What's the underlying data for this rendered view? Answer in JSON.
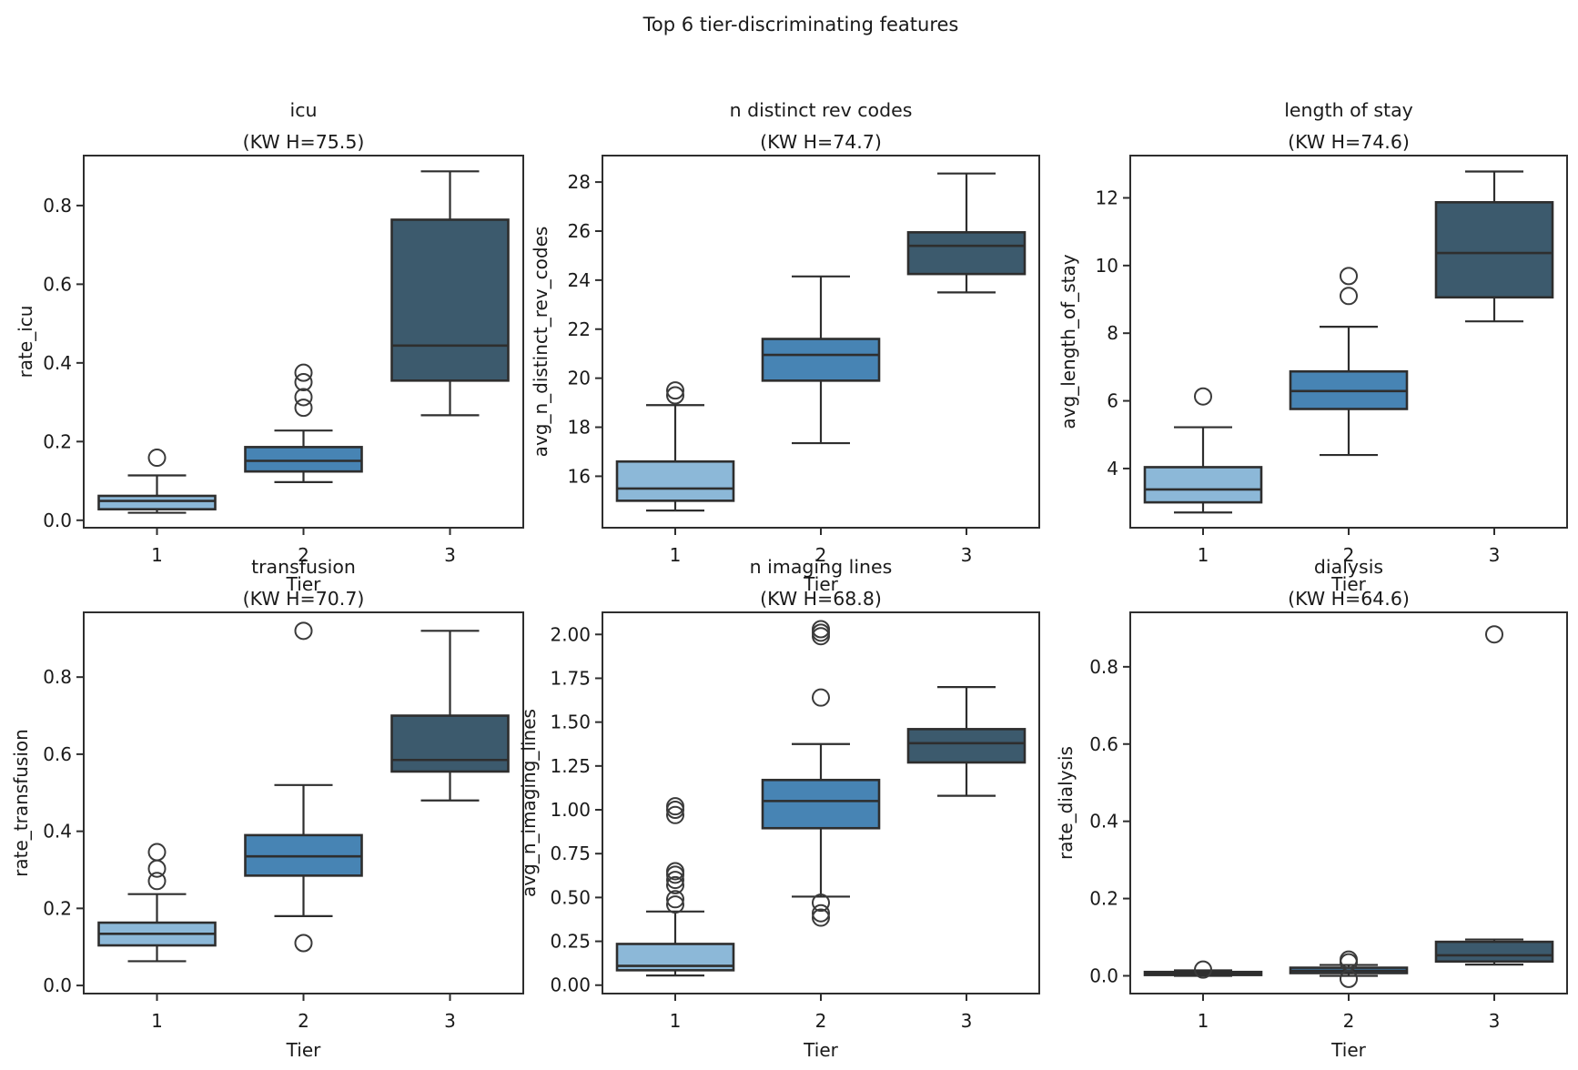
{
  "figure": {
    "suptitle": "Top 6 tier-discriminating features",
    "background": "#ffffff",
    "text_color": "#1a1a1a",
    "edge_color": "#2e2e2e",
    "tier_colors": [
      "#8CB8D8",
      "#4784B4",
      "#3C5A6D"
    ]
  },
  "chart_data": [
    {
      "type": "box",
      "title": "icu",
      "subtitle": "(KW H=75.5)",
      "xlabel": "Tier",
      "ylabel": "rate_icu",
      "categories": [
        "1",
        "2",
        "3"
      ],
      "ylim": [
        -0.019,
        0.927
      ],
      "yticks": {
        "values": [
          0.0,
          0.2,
          0.4,
          0.6,
          0.8
        ],
        "labels": [
          "0.0",
          "0.2",
          "0.4",
          "0.6",
          "0.8"
        ]
      },
      "boxes": [
        {
          "whislo": 0.019,
          "q1": 0.028,
          "med": 0.049,
          "q3": 0.062,
          "whishi": 0.114,
          "outliers": [
            0.159
          ]
        },
        {
          "whislo": 0.097,
          "q1": 0.124,
          "med": 0.151,
          "q3": 0.186,
          "whishi": 0.228,
          "outliers": [
            0.286,
            0.313,
            0.351,
            0.375
          ]
        },
        {
          "whislo": 0.267,
          "q1": 0.355,
          "med": 0.444,
          "q3": 0.764,
          "whishi": 0.887,
          "outliers": []
        }
      ]
    },
    {
      "type": "box",
      "title": "n distinct rev codes",
      "subtitle": "(KW H=74.7)",
      "xlabel": "Tier",
      "ylabel": "avg_n_distinct_rev_codes",
      "categories": [
        "1",
        "2",
        "3"
      ],
      "ylim": [
        13.9,
        29.08
      ],
      "yticks": {
        "values": [
          16,
          18,
          20,
          22,
          24,
          26,
          28
        ],
        "labels": [
          "16",
          "18",
          "20",
          "22",
          "24",
          "26",
          "28"
        ]
      },
      "boxes": [
        {
          "whislo": 14.6,
          "q1": 15.0,
          "med": 15.5,
          "q3": 16.6,
          "whishi": 18.9,
          "outliers": [
            19.3,
            19.5
          ]
        },
        {
          "whislo": 17.35,
          "q1": 19.9,
          "med": 20.95,
          "q3": 21.6,
          "whishi": 24.15,
          "outliers": []
        },
        {
          "whislo": 23.5,
          "q1": 24.25,
          "med": 25.4,
          "q3": 25.95,
          "whishi": 28.35,
          "outliers": []
        }
      ]
    },
    {
      "type": "box",
      "title": "length of stay",
      "subtitle": "(KW H=74.6)",
      "xlabel": "Tier",
      "ylabel": "avg_length_of_stay",
      "categories": [
        "1",
        "2",
        "3"
      ],
      "ylim": [
        2.25,
        13.25
      ],
      "yticks": {
        "values": [
          4,
          6,
          8,
          10,
          12
        ],
        "labels": [
          "4",
          "6",
          "8",
          "10",
          "12"
        ]
      },
      "boxes": [
        {
          "whislo": 2.7,
          "q1": 3.0,
          "med": 3.38,
          "q3": 4.04,
          "whishi": 5.22,
          "outliers": [
            6.13
          ]
        },
        {
          "whislo": 4.4,
          "q1": 5.76,
          "med": 6.29,
          "q3": 6.87,
          "whishi": 8.19,
          "outliers": [
            9.1,
            9.69
          ]
        },
        {
          "whislo": 8.35,
          "q1": 9.06,
          "med": 10.37,
          "q3": 11.87,
          "whishi": 12.78,
          "outliers": []
        }
      ]
    },
    {
      "type": "box",
      "title": "transfusion",
      "subtitle": "(KW H=70.7)",
      "xlabel": "Tier",
      "ylabel": "rate_transfusion",
      "categories": [
        "1",
        "2",
        "3"
      ],
      "ylim": [
        -0.021,
        0.968
      ],
      "yticks": {
        "values": [
          0.0,
          0.2,
          0.4,
          0.6,
          0.8
        ],
        "labels": [
          "0.0",
          "0.2",
          "0.4",
          "0.6",
          "0.8"
        ]
      },
      "boxes": [
        {
          "whislo": 0.063,
          "q1": 0.104,
          "med": 0.134,
          "q3": 0.163,
          "whishi": 0.237,
          "outliers": [
            0.271,
            0.303,
            0.346
          ]
        },
        {
          "whislo": 0.18,
          "q1": 0.285,
          "med": 0.335,
          "q3": 0.39,
          "whishi": 0.52,
          "outliers": [
            0.11,
            0.92
          ]
        },
        {
          "whislo": 0.48,
          "q1": 0.555,
          "med": 0.585,
          "q3": 0.7,
          "whishi": 0.92,
          "outliers": []
        }
      ]
    },
    {
      "type": "box",
      "title": "n imaging lines",
      "subtitle": "(KW H=68.8)",
      "xlabel": "Tier",
      "ylabel": "avg_n_imaging_lines",
      "categories": [
        "1",
        "2",
        "3"
      ],
      "ylim": [
        -0.048,
        2.126
      ],
      "yticks": {
        "values": [
          0.0,
          0.25,
          0.5,
          0.75,
          1.0,
          1.25,
          1.5,
          1.75,
          2.0
        ],
        "labels": [
          "0.00",
          "0.25",
          "0.50",
          "0.75",
          "1.00",
          "1.25",
          "1.50",
          "1.75",
          "2.00"
        ]
      },
      "boxes": [
        {
          "whislo": 0.055,
          "q1": 0.085,
          "med": 0.11,
          "q3": 0.235,
          "whishi": 0.42,
          "outliers": [
            0.46,
            0.49,
            0.57,
            0.6,
            0.63,
            0.65,
            0.97,
            1.0,
            1.02
          ]
        },
        {
          "whislo": 0.505,
          "q1": 0.895,
          "med": 1.05,
          "q3": 1.17,
          "whishi": 1.375,
          "outliers": [
            0.385,
            0.41,
            0.47,
            1.64,
            1.99,
            2.01,
            2.03
          ]
        },
        {
          "whislo": 1.08,
          "q1": 1.27,
          "med": 1.38,
          "q3": 1.46,
          "whishi": 1.7,
          "outliers": []
        }
      ]
    },
    {
      "type": "box",
      "title": "dialysis",
      "subtitle": "(KW H=64.6)",
      "xlabel": "Tier",
      "ylabel": "rate_dialysis",
      "categories": [
        "1",
        "2",
        "3"
      ],
      "ylim": [
        -0.046,
        0.941
      ],
      "yticks": {
        "values": [
          0.0,
          0.2,
          0.4,
          0.6,
          0.8
        ],
        "labels": [
          "0.0",
          "0.2",
          "0.4",
          "0.6",
          "0.8"
        ]
      },
      "boxes": [
        {
          "whislo": 0.0,
          "q1": 0.002,
          "med": 0.005,
          "q3": 0.01,
          "whishi": 0.014,
          "outliers": [
            0.016
          ]
        },
        {
          "whislo": 0.0,
          "q1": 0.007,
          "med": 0.013,
          "q3": 0.021,
          "whishi": 0.028,
          "outliers": [
            -0.008,
            0.035,
            0.042
          ]
        },
        {
          "whislo": 0.029,
          "q1": 0.037,
          "med": 0.053,
          "q3": 0.088,
          "whishi": 0.094,
          "outliers": [
            0.884
          ]
        }
      ]
    }
  ]
}
